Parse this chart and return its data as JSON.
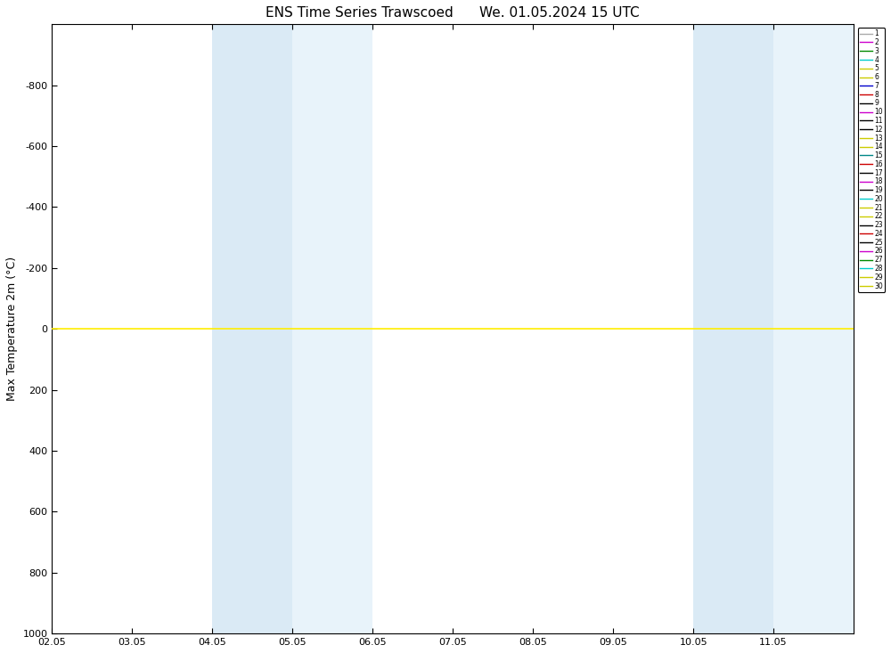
{
  "title": "ENS Time Series Trawscoed      We. 01.05.2024 15 UTC",
  "ylabel": "Max Temperature 2m (°C)",
  "xlim_dates": [
    "2024-05-02",
    "2024-05-12"
  ],
  "ylim": [
    1000,
    -1000
  ],
  "yticks": [
    -800,
    -600,
    -400,
    -200,
    0,
    200,
    400,
    600,
    800,
    1000
  ],
  "xtick_labels": [
    "02.05",
    "03.05",
    "04.05",
    "05.05",
    "06.05",
    "07.05",
    "08.05",
    "09.05",
    "10.05",
    "11.05"
  ],
  "shaded_bands": [
    {
      "xmin": "2024-05-04",
      "xmax": "2024-05-05",
      "color": "#daeaf5"
    },
    {
      "xmin": "2024-05-05",
      "xmax": "2024-05-06",
      "color": "#e8f3fa"
    },
    {
      "xmin": "2024-05-10",
      "xmax": "2024-05-11",
      "color": "#daeaf5"
    },
    {
      "xmin": "2024-05-11",
      "xmax": "2024-05-12",
      "color": "#e8f3fa"
    }
  ],
  "hline_y": 0,
  "hline_color": "#ffee00",
  "legend_numbers": [
    1,
    2,
    3,
    4,
    5,
    6,
    7,
    8,
    9,
    10,
    11,
    12,
    13,
    14,
    15,
    16,
    17,
    18,
    19,
    20,
    21,
    22,
    23,
    24,
    25,
    26,
    27,
    28,
    29,
    30
  ],
  "legend_colors": [
    "#aaaaaa",
    "#cc00cc",
    "#008800",
    "#00cccc",
    "#cccc00",
    "#cccc00",
    "#0000cc",
    "#cc0000",
    "#000000",
    "#cc00cc",
    "#000000",
    "#000000",
    "#cccc00",
    "#cccc00",
    "#008888",
    "#cc0000",
    "#000000",
    "#cc00cc",
    "#000000",
    "#00cccc",
    "#cccc00",
    "#cccc00",
    "#000000",
    "#cc0000",
    "#000000",
    "#cc00cc",
    "#008800",
    "#00cccc",
    "#cccc00",
    "#cccc00"
  ],
  "background_color": "#ffffff",
  "title_fontsize": 11,
  "label_fontsize": 9,
  "tick_fontsize": 8
}
